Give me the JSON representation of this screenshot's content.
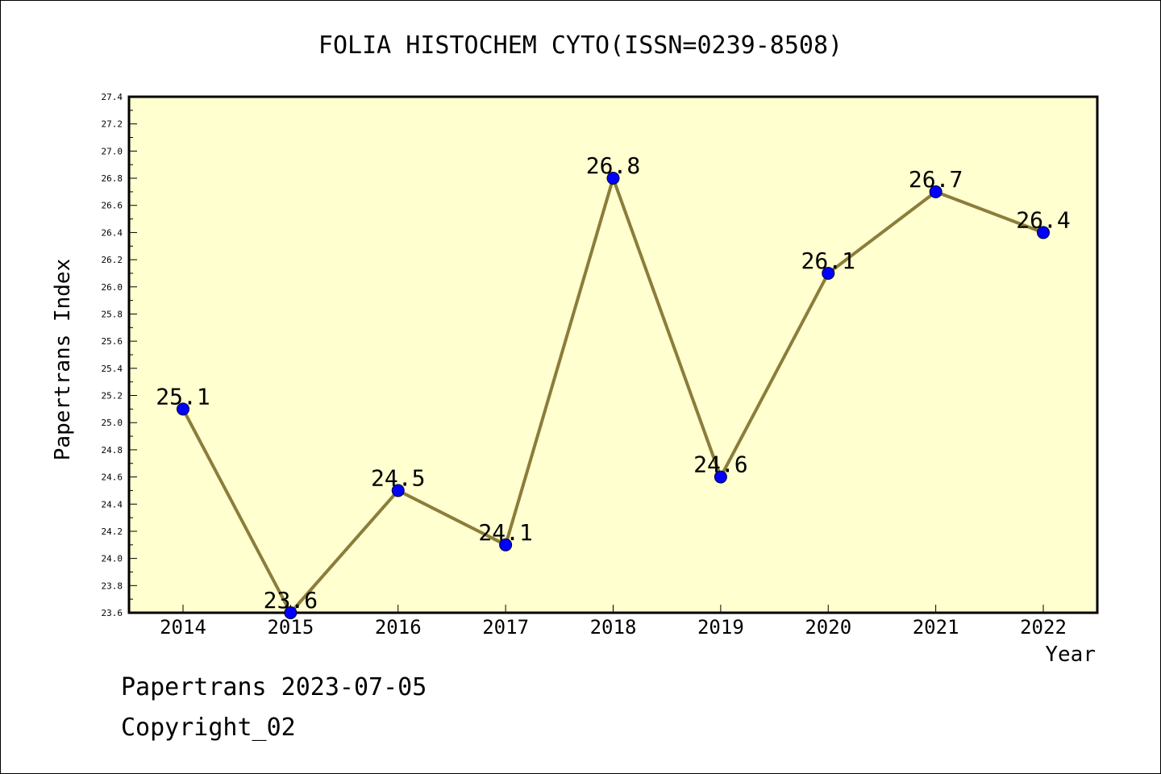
{
  "chart_data": {
    "type": "line",
    "title": "FOLIA HISTOCHEM CYTO(ISSN=0239-8508)",
    "xlabel": "Year",
    "ylabel": "Papertrans Index",
    "categories": [
      "2014",
      "2015",
      "2016",
      "2017",
      "2018",
      "2019",
      "2020",
      "2021",
      "2022"
    ],
    "values": [
      25.1,
      23.6,
      24.5,
      24.1,
      26.8,
      24.6,
      26.1,
      26.7,
      26.4
    ],
    "data_labels": [
      "25.1",
      "23.6",
      "24.5",
      "24.1",
      "26.8",
      "24.6",
      "26.1",
      "26.7",
      "26.4"
    ],
    "ylim": [
      23.6,
      27.4
    ],
    "yticks": [
      "23.6",
      "23.8",
      "24.0",
      "24.2",
      "24.4",
      "24.6",
      "24.8",
      "25.0",
      "25.2",
      "25.4",
      "25.6",
      "25.8",
      "26.0",
      "26.2",
      "26.4",
      "26.6",
      "26.8",
      "27.0",
      "27.2",
      "27.4"
    ],
    "grid": false,
    "legend": "none",
    "colors": {
      "plot_background": "#ffffd0",
      "line": "#8b7d3a",
      "marker": "#0000ff"
    }
  },
  "footer": {
    "line1": "Papertrans 2023-07-05",
    "line2": "Copyright_02"
  }
}
